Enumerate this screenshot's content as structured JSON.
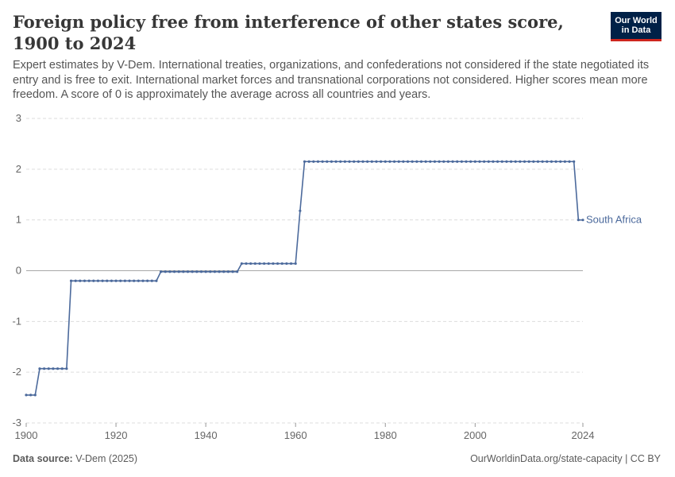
{
  "header": {
    "title": "Foreign policy free from interference of other states score, 1900 to 2024",
    "subtitle": "Expert estimates by V-Dem. International treaties, organizations, and confederations not considered if the state negotiated its entry and is free to exit. International market forces and transnational corporations not considered. Higher scores mean more freedom. A score of 0 is approximately the average across all countries and years.",
    "logo_line1": "Our World",
    "logo_line2": "in Data"
  },
  "footer": {
    "source_label": "Data source:",
    "source_value": "V-Dem (2025)",
    "link": "OurWorldinData.org/state-capacity | CC BY"
  },
  "colors": {
    "series": "#4c6a9c",
    "grid": "#dddddd",
    "zero_line": "#a8a8a8",
    "logo_bg": "#002147",
    "logo_accent": "#ce261e"
  },
  "chart_data": {
    "type": "line",
    "title": "Foreign policy free from interference of other states score, 1900 to 2024",
    "xlabel": "",
    "ylabel": "",
    "xlim": [
      1900,
      2024
    ],
    "ylim": [
      -3,
      3
    ],
    "x_ticks": [
      "1900",
      "1920",
      "1940",
      "1960",
      "1980",
      "2000",
      "2024"
    ],
    "y_ticks": [
      "3",
      "2",
      "1",
      "0",
      "-1",
      "-2",
      "-3"
    ],
    "grid": true,
    "series": [
      {
        "name": "South Africa",
        "segments": [
          {
            "start": 1900,
            "end": 1902,
            "value": -2.45
          },
          {
            "start": 1903,
            "end": 1909,
            "value": -1.93
          },
          {
            "start": 1910,
            "end": 1929,
            "value": -0.2
          },
          {
            "start": 1930,
            "end": 1947,
            "value": -0.02
          },
          {
            "start": 1948,
            "end": 1960,
            "value": 0.14
          },
          {
            "start": 1961,
            "end": 1961,
            "value": 1.18
          },
          {
            "start": 1962,
            "end": 2022,
            "value": 2.15
          },
          {
            "start": 2023,
            "end": 2024,
            "value": 1.0
          }
        ]
      }
    ]
  }
}
